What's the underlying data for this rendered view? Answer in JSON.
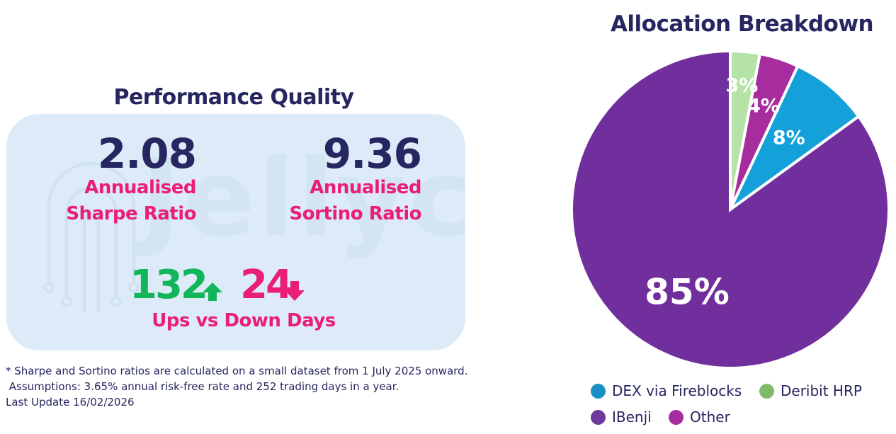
{
  "performance": {
    "title": "Performance Quality",
    "sharpe": {
      "value": "2.08",
      "label_line1": "Annualised",
      "label_line2": "Sharpe Ratio"
    },
    "sortino": {
      "value": "9.36",
      "label_line1": "Annualised",
      "label_line2": "Sortino Ratio"
    },
    "up_days": "132",
    "down_days": "24",
    "updown_label": "Ups vs Down Days",
    "watermark_text": "Jellyc"
  },
  "footnote": {
    "line1": "* Sharpe and Sortino ratios are calculated on a small dataset from 1 July 2025 onward.",
    "line2": " Assumptions: 3.65% annual risk-free rate and 252 trading days in a year.",
    "line3": "Last Update 16/02/2026"
  },
  "colors": {
    "navy": "#262660",
    "pink": "#e91e74",
    "green": "#12b65a",
    "card_bg": "#ddebf8"
  },
  "chart_data": {
    "type": "pie",
    "title": "Allocation Breakdown",
    "slices": [
      {
        "name": "Deribit HRP",
        "value": 3,
        "label": "3%",
        "color": "#b5e3a7",
        "legend_color": "#7dbb67"
      },
      {
        "name": "Other",
        "value": 4,
        "label": "4%",
        "color": "#a72d9f",
        "legend_color": "#a72d9f"
      },
      {
        "name": "DEX via Fireblocks",
        "value": 8,
        "label": "8%",
        "color": "#14a0d8",
        "legend_color": "#1a8fc4"
      },
      {
        "name": "IBenji",
        "value": 85,
        "label": "85%",
        "color": "#712f9d",
        "legend_color": "#6d3a9c"
      }
    ],
    "legend_order": [
      "DEX via Fireblocks",
      "Deribit HRP",
      "IBenji",
      "Other"
    ],
    "legend_placement": "bottom"
  }
}
